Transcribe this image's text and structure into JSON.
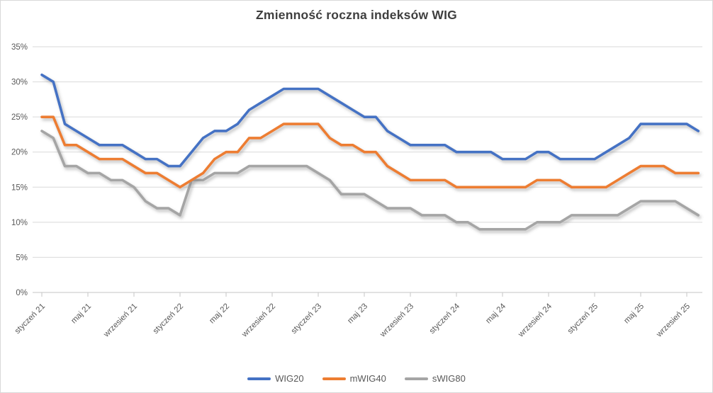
{
  "chart_data": {
    "type": "line",
    "title": "Zmienność roczna indeksów WIG",
    "x_tick_labels": [
      "styczeń 21",
      "maj 21",
      "wrzesień 21",
      "styczeń 22",
      "maj 22",
      "wrzesień 22",
      "styczeń 23",
      "maj 23",
      "wrzesień 23",
      "styczeń 24",
      "maj 24",
      "wrzesień 24",
      "styczeń 25",
      "maj 25",
      "wrzesień 25"
    ],
    "x_tick_every": 4,
    "n_points": 58,
    "y_tick_labels": [
      "0%",
      "5%",
      "10%",
      "15%",
      "20%",
      "25%",
      "30%",
      "35%"
    ],
    "ylim": [
      0,
      35
    ],
    "y_step": 5,
    "grid": true,
    "legend_position": "bottom",
    "grid_color": "#d9d9d9",
    "axis_color": "#c6c6c6",
    "text_color": "#595959",
    "series": [
      {
        "name": "WIG20",
        "color": "#4472C4",
        "values": [
          31,
          30,
          24,
          23,
          22,
          21,
          21,
          21,
          20,
          19,
          19,
          18,
          18,
          20,
          22,
          23,
          23,
          24,
          26,
          27,
          28,
          29,
          29,
          29,
          29,
          28,
          27,
          26,
          25,
          25,
          23,
          22,
          21,
          21,
          21,
          21,
          20,
          20,
          20,
          20,
          19,
          19,
          19,
          20,
          20,
          19,
          19,
          19,
          19,
          20,
          21,
          22,
          24,
          24,
          24,
          24,
          24,
          23
        ]
      },
      {
        "name": "mWIG40",
        "color": "#ED7D31",
        "values": [
          25,
          25,
          21,
          21,
          20,
          19,
          19,
          19,
          18,
          17,
          17,
          16,
          15,
          16,
          17,
          19,
          20,
          20,
          22,
          22,
          23,
          24,
          24,
          24,
          24,
          22,
          21,
          21,
          20,
          20,
          18,
          17,
          16,
          16,
          16,
          16,
          15,
          15,
          15,
          15,
          15,
          15,
          15,
          16,
          16,
          16,
          15,
          15,
          15,
          15,
          16,
          17,
          18,
          18,
          18,
          17,
          17,
          17
        ]
      },
      {
        "name": "sWIG80",
        "color": "#A5A5A5",
        "values": [
          23,
          22,
          18,
          18,
          17,
          17,
          16,
          16,
          15,
          13,
          12,
          12,
          11,
          16,
          16,
          17,
          17,
          17,
          18,
          18,
          18,
          18,
          18,
          18,
          17,
          16,
          14,
          14,
          14,
          13,
          12,
          12,
          12,
          11,
          11,
          11,
          10,
          10,
          9,
          9,
          9,
          9,
          9,
          10,
          10,
          10,
          11,
          11,
          11,
          11,
          11,
          12,
          13,
          13,
          13,
          13,
          12,
          11
        ]
      }
    ]
  }
}
